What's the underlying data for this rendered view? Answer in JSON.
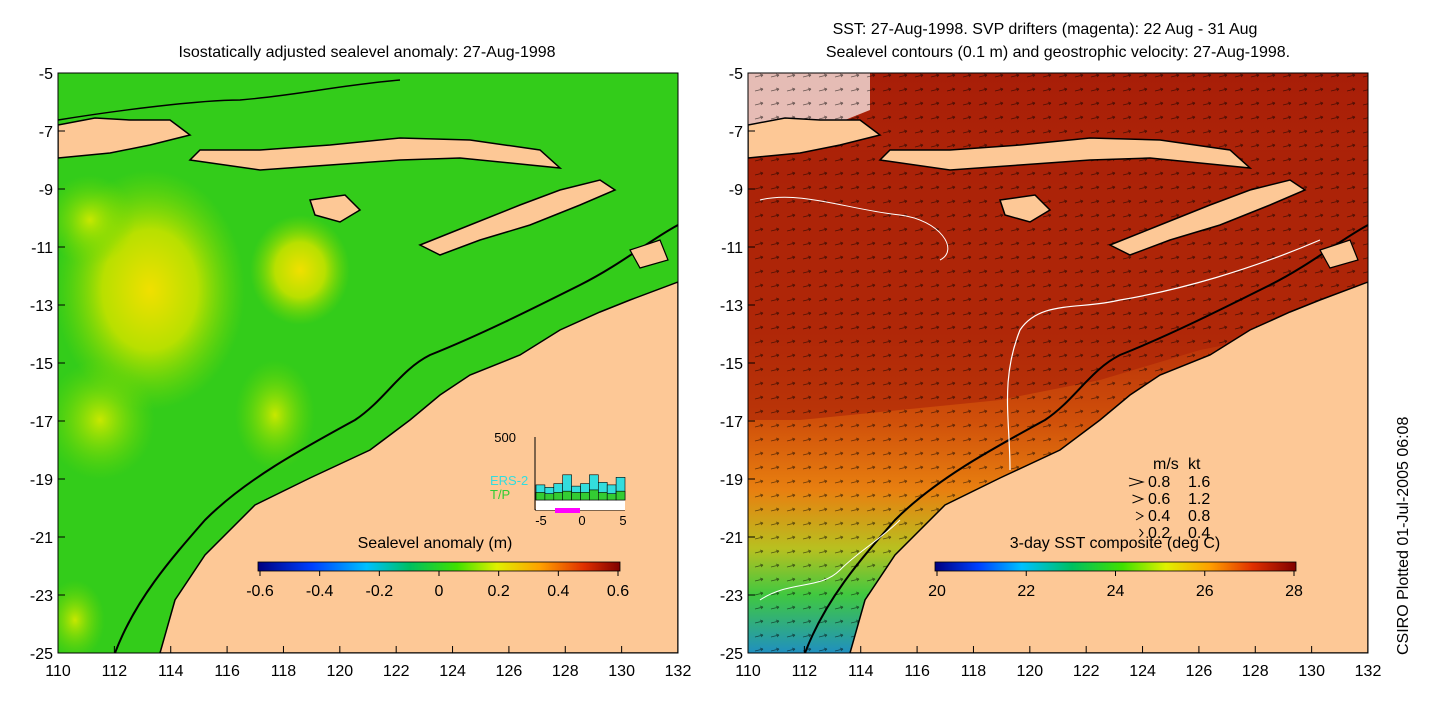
{
  "left_panel": {
    "title": "Isostatically adjusted sealevel anomaly: 27-Aug-1998",
    "x_ticks": [
      "110",
      "112",
      "114",
      "116",
      "118",
      "120",
      "122",
      "124",
      "126",
      "128",
      "130",
      "132"
    ],
    "y_ticks": [
      "-5",
      "-7",
      "-9",
      "-11",
      "-13",
      "-15",
      "-17",
      "-19",
      "-21",
      "-23",
      "-25"
    ],
    "colorbar": {
      "label": "Sealevel anomaly (m)",
      "ticks": [
        "-0.6",
        "-0.4",
        "-0.2",
        "0",
        "0.2",
        "0.4",
        "0.6"
      ]
    },
    "inset": {
      "y_label": "500",
      "x_ticks": [
        "-5",
        "0",
        "5"
      ],
      "legend": [
        {
          "name": "ERS-2",
          "color": "#33dddd"
        },
        {
          "name": "T/P",
          "color": "#33cc33"
        }
      ],
      "ers2_counts": [
        120,
        100,
        130,
        200,
        110,
        130,
        200,
        140,
        120,
        180
      ],
      "tp_counts": [
        60,
        50,
        60,
        70,
        60,
        60,
        80,
        60,
        50,
        70
      ]
    }
  },
  "right_panel": {
    "title_line1": "SST: 27-Aug-1998. SVP drifters (magenta): 22 Aug - 31 Aug",
    "title_line2": "Sealevel contours (0.1 m) and geostrophic velocity: 27-Aug-1998.",
    "x_ticks": [
      "110",
      "112",
      "114",
      "116",
      "118",
      "120",
      "122",
      "124",
      "126",
      "128",
      "130",
      "132"
    ],
    "y_ticks": [
      "-5",
      "-7",
      "-9",
      "-11",
      "-13",
      "-15",
      "-17",
      "-19",
      "-21",
      "-23",
      "-25"
    ],
    "colorbar": {
      "label": "3-day SST composite (deg C)",
      "ticks": [
        "20",
        "22",
        "24",
        "26",
        "28"
      ]
    },
    "velocity_legend": {
      "header_ms": "m/s",
      "header_kt": "kt",
      "rows": [
        {
          "ms": "0.8",
          "kt": "1.6"
        },
        {
          "ms": "0.6",
          "kt": "1.2"
        },
        {
          "ms": "0.4",
          "kt": "0.8"
        },
        {
          "ms": "0.2",
          "kt": "0.4"
        }
      ]
    }
  },
  "credit": "CSIRO Plotted 01-Jul-2005 06:08",
  "colors": {
    "land": "#fdc896",
    "ssh_background": "#33cc1a",
    "sst_warm": "#b52a0b"
  }
}
